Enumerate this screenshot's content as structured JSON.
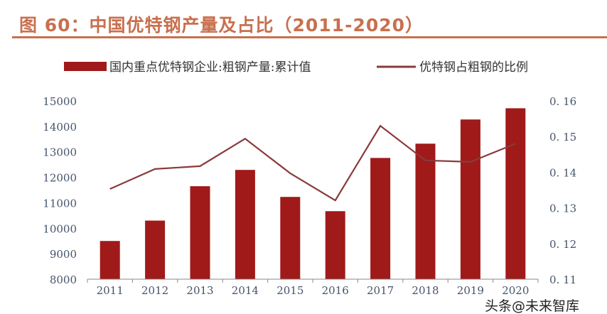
{
  "title": "图 60：中国优特钢产量及占比（2011-2020）",
  "watermark": "头条@未来智库",
  "colors": {
    "bar": "#a01a1a",
    "line": "#8b3a3a",
    "title": "#c8704f"
  },
  "chart_data": {
    "type": "bar+line",
    "categories": [
      "2011",
      "2012",
      "2013",
      "2014",
      "2015",
      "2016",
      "2017",
      "2018",
      "2019",
      "2020"
    ],
    "series": [
      {
        "name": "国内重点优特钢企业:粗钢产量:累计值",
        "type": "bar",
        "axis": "left",
        "values": [
          9500,
          10300,
          11650,
          12290,
          11230,
          10670,
          12760,
          13320,
          14270,
          14710
        ]
      },
      {
        "name": "优特钢占粗钢的比例",
        "type": "line",
        "axis": "right",
        "values": [
          0.1353,
          0.1409,
          0.1417,
          0.1494,
          0.1397,
          0.1321,
          0.153,
          0.1433,
          0.1429,
          0.148
        ]
      }
    ],
    "ylim": [
      8000,
      15000
    ],
    "yticks": [
      "8000",
      "9000",
      "10000",
      "11000",
      "12000",
      "13000",
      "14000",
      "15000"
    ],
    "y2lim": [
      0.11,
      0.16
    ],
    "y2ticks": [
      "0.11",
      "0.12",
      "0.13",
      "0.14",
      "0.15",
      "0.16"
    ],
    "legend": "top",
    "grid": false
  }
}
